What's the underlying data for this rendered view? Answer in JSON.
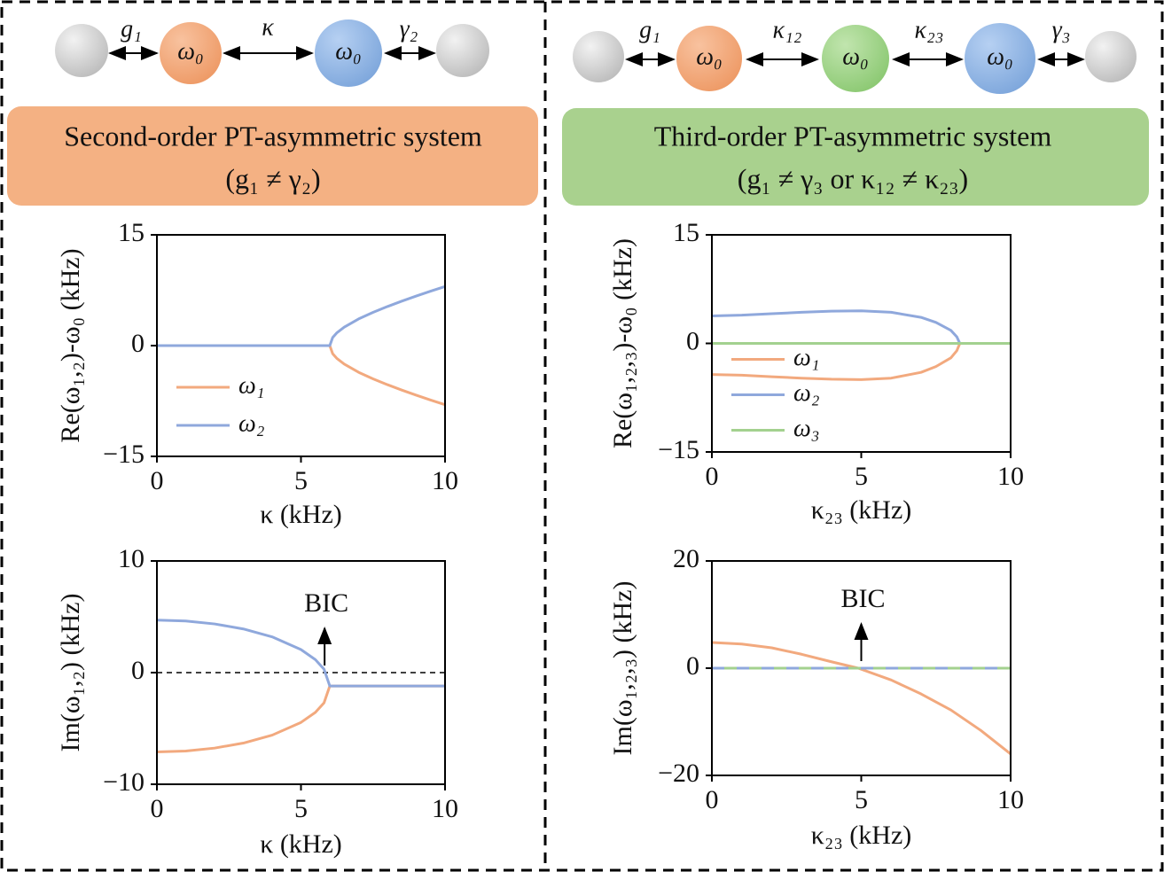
{
  "panels": [
    {
      "coupling_labels": [
        "g₁",
        "κ",
        "γ₂"
      ],
      "mode_labels": [
        "ω₀",
        "ω₀"
      ],
      "title": "Second-order PT-asymmetric system",
      "condition": "(g₁ ≠ γ₂)"
    },
    {
      "coupling_labels": [
        "g₁",
        "κ₁₂",
        "κ₂₃",
        "γ₃"
      ],
      "mode_labels": [
        "ω₀",
        "ω₀",
        "ω₀"
      ],
      "title": "Third-order PT-asymmetric system",
      "condition": "(g₁ ≠ γ₃ or κ₁₂ ≠ κ₂₃)"
    }
  ],
  "chart_data": [
    {
      "type": "line",
      "xlabel": "κ (kHz)",
      "ylabel": "Re(ω₁,₂)-ω₀ (kHz)",
      "x": [
        0,
        1,
        2,
        3,
        4,
        5,
        6,
        6.1,
        6.25,
        6.5,
        7,
        7.5,
        8,
        8.5,
        9,
        9.5,
        10
      ],
      "series": [
        {
          "name": "ω₁",
          "color": "#f2a97e",
          "values": [
            0,
            0,
            0,
            0,
            0,
            0,
            0,
            -1.1,
            -1.75,
            -2.5,
            -3.61,
            -4.5,
            -5.29,
            -6.02,
            -6.71,
            -7.37,
            -8
          ]
        },
        {
          "name": "ω₂",
          "color": "#8fa8dc",
          "values": [
            0,
            0,
            0,
            0,
            0,
            0,
            0,
            1.1,
            1.75,
            2.5,
            3.61,
            4.5,
            5.29,
            6.02,
            6.71,
            7.37,
            8
          ]
        }
      ],
      "xlim": [
        0,
        10
      ],
      "xticks": [
        0,
        5,
        10
      ],
      "ylim": [
        -15,
        15
      ],
      "yticks": [
        {
          "value": -15,
          "label": "−15"
        },
        0,
        15
      ],
      "legend": "lower left"
    },
    {
      "type": "line",
      "xlabel": "κ (kHz)",
      "ylabel": "Im(ω₁,₂) (kHz)",
      "annotation": "BIC",
      "x": [
        0,
        1,
        2,
        3,
        4,
        5,
        5.5,
        5.8,
        6,
        7,
        8,
        9,
        10
      ],
      "series": [
        {
          "name": "ω₁",
          "color": "#f2a97e",
          "values": [
            -7.1,
            -7.02,
            -6.76,
            -6.31,
            -5.6,
            -4.46,
            -3.56,
            -2.71,
            -1.2,
            -1.2,
            -1.2,
            -1.2,
            -1.2
          ]
        },
        {
          "name": "ω₂",
          "color": "#8fa8dc",
          "values": [
            4.7,
            4.62,
            4.36,
            3.91,
            3.2,
            2.06,
            1.16,
            0.31,
            -1.2,
            -1.2,
            -1.2,
            -1.2,
            -1.2
          ]
        }
      ],
      "xlim": [
        0,
        10
      ],
      "xticks": [
        0,
        5,
        10
      ],
      "ylim": [
        -10,
        10
      ],
      "yticks": [
        {
          "value": -10,
          "label": "−10"
        },
        0,
        10
      ],
      "reference_line": 0,
      "legend": "none"
    },
    {
      "type": "line",
      "xlabel": "κ₂₃ (kHz)",
      "ylabel": "Re(ω₁,₂,₃)-ω₀ (kHz)",
      "x": [
        0,
        1,
        2,
        3,
        4,
        5,
        6,
        7,
        7.5,
        8,
        8.2,
        8.3,
        9,
        10
      ],
      "series": [
        {
          "name": "ω₁",
          "color": "#f2a97e",
          "values": [
            -4.3,
            -4.4,
            -4.6,
            -4.8,
            -4.95,
            -5,
            -4.8,
            -4,
            -3.2,
            -2,
            -1,
            0,
            null,
            null
          ]
        },
        {
          "name": "ω₂",
          "color": "#8fa8dc",
          "values": [
            3.8,
            3.9,
            4.1,
            4.3,
            4.45,
            4.5,
            4.3,
            3.6,
            2.9,
            1.8,
            0.9,
            0,
            null,
            null
          ]
        },
        {
          "name": "ω₃",
          "color": "#a3d18f",
          "values": [
            0,
            0,
            0,
            0,
            0,
            0,
            0,
            0,
            0,
            0,
            0,
            0,
            0,
            0
          ]
        }
      ],
      "xlim": [
        0,
        10
      ],
      "xticks": [
        0,
        5,
        10
      ],
      "ylim": [
        -15,
        15
      ],
      "yticks": [
        {
          "value": -15,
          "label": "−15"
        },
        0,
        15
      ],
      "legend": "center left"
    },
    {
      "type": "line",
      "xlabel": "κ₂₃ (kHz)",
      "ylabel": "Im(ω₁,₂,₃) (kHz)",
      "annotation": "BIC",
      "x": [
        0,
        1,
        2,
        3,
        4,
        4.9,
        6,
        7,
        8,
        9,
        10
      ],
      "series": [
        {
          "color": "#f2a97e",
          "values": [
            4.8,
            4.5,
            3.8,
            2.6,
            1.2,
            0,
            -2.2,
            -4.8,
            -7.8,
            -11.6,
            -16
          ]
        },
        {
          "color": "#8fa8dc",
          "values": [
            0,
            0,
            0,
            0,
            0,
            0,
            0,
            0,
            0,
            0,
            0
          ],
          "dash": true
        },
        {
          "color": "#a3d18f",
          "values": [
            0,
            0,
            0,
            0,
            0,
            0,
            0,
            0,
            0,
            0,
            0
          ],
          "dash": true
        }
      ],
      "xlim": [
        0,
        10
      ],
      "xticks": [
        0,
        5,
        10
      ],
      "ylim": [
        -20,
        20
      ],
      "yticks": [
        {
          "value": -20,
          "label": "−20"
        },
        0,
        20
      ],
      "legend": "none"
    }
  ]
}
